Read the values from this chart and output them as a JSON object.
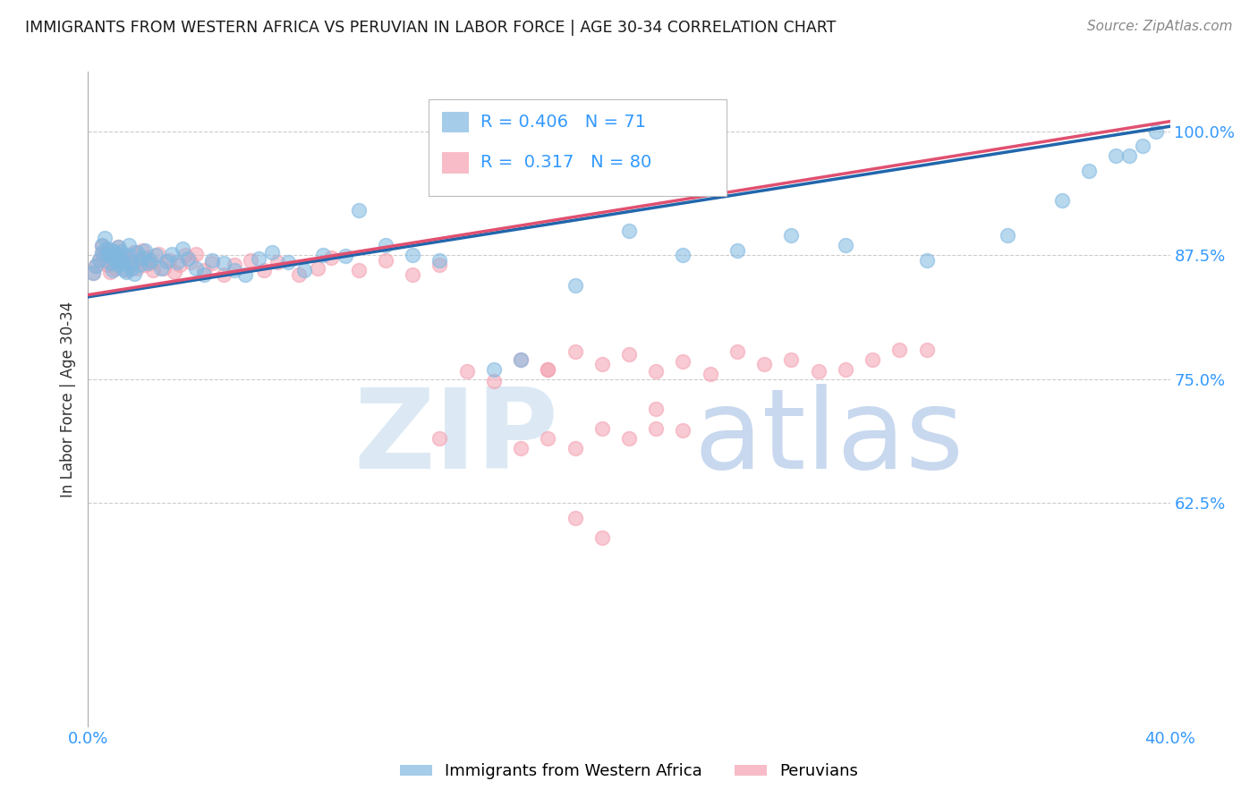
{
  "title": "IMMIGRANTS FROM WESTERN AFRICA VS PERUVIAN IN LABOR FORCE | AGE 30-34 CORRELATION CHART",
  "source": "Source: ZipAtlas.com",
  "ylabel": "In Labor Force | Age 30-34",
  "blue_R": 0.406,
  "blue_N": 71,
  "pink_R": 0.317,
  "pink_N": 80,
  "blue_color": "#7fb8e0",
  "pink_color": "#f4a0b0",
  "blue_line_color": "#2166ac",
  "pink_line_color": "#e05070",
  "axis_label_color": "#3399ff",
  "title_color": "#1a1a1a",
  "watermark_zip_color": "#dce9f5",
  "watermark_atlas_color": "#c8d8ee",
  "background_color": "#ffffff",
  "xmin": 0.0,
  "xmax": 0.4,
  "ymin": 0.4,
  "ymax": 1.06,
  "ytick_positions": [
    0.625,
    0.75,
    0.875,
    1.0
  ],
  "ytick_labels": [
    "62.5%",
    "75.0%",
    "87.5%",
    "100.0%"
  ],
  "xtick_positions": [
    0.0,
    0.1,
    0.2,
    0.3,
    0.4
  ],
  "xtick_labels": [
    "0.0%",
    "",
    "",
    "",
    "40.0%"
  ],
  "blue_line_x0": 0.0,
  "blue_line_y0": 0.833,
  "blue_line_x1": 0.4,
  "blue_line_y1": 1.005,
  "pink_line_x0": 0.0,
  "pink_line_y0": 0.835,
  "pink_line_x1": 0.4,
  "pink_line_y1": 1.01,
  "blue_scatter_x": [
    0.002,
    0.003,
    0.004,
    0.005,
    0.005,
    0.006,
    0.007,
    0.007,
    0.008,
    0.008,
    0.009,
    0.009,
    0.01,
    0.01,
    0.011,
    0.011,
    0.012,
    0.012,
    0.013,
    0.013,
    0.014,
    0.015,
    0.015,
    0.016,
    0.016,
    0.017,
    0.018,
    0.019,
    0.02,
    0.021,
    0.022,
    0.023,
    0.025,
    0.027,
    0.029,
    0.031,
    0.033,
    0.035,
    0.037,
    0.04,
    0.043,
    0.046,
    0.05,
    0.054,
    0.058,
    0.063,
    0.068,
    0.074,
    0.08,
    0.087,
    0.095,
    0.1,
    0.11,
    0.12,
    0.13,
    0.15,
    0.16,
    0.18,
    0.2,
    0.22,
    0.24,
    0.26,
    0.28,
    0.31,
    0.34,
    0.36,
    0.37,
    0.38,
    0.385,
    0.39,
    0.395
  ],
  "blue_scatter_y": [
    0.857,
    0.864,
    0.871,
    0.878,
    0.885,
    0.892,
    0.875,
    0.882,
    0.867,
    0.874,
    0.86,
    0.88,
    0.87,
    0.877,
    0.865,
    0.883,
    0.872,
    0.879,
    0.861,
    0.868,
    0.858,
    0.875,
    0.885,
    0.862,
    0.869,
    0.856,
    0.878,
    0.865,
    0.873,
    0.88,
    0.867,
    0.87,
    0.875,
    0.862,
    0.869,
    0.876,
    0.868,
    0.882,
    0.872,
    0.862,
    0.855,
    0.87,
    0.867,
    0.86,
    0.855,
    0.872,
    0.878,
    0.868,
    0.86,
    0.875,
    0.874,
    0.92,
    0.885,
    0.875,
    0.87,
    0.76,
    0.77,
    0.845,
    0.9,
    0.875,
    0.88,
    0.895,
    0.885,
    0.87,
    0.895,
    0.93,
    0.96,
    0.975,
    0.975,
    0.985,
    1.0
  ],
  "pink_scatter_x": [
    0.002,
    0.003,
    0.004,
    0.005,
    0.005,
    0.006,
    0.006,
    0.007,
    0.007,
    0.008,
    0.009,
    0.009,
    0.01,
    0.011,
    0.011,
    0.012,
    0.013,
    0.014,
    0.015,
    0.016,
    0.017,
    0.018,
    0.019,
    0.02,
    0.021,
    0.022,
    0.023,
    0.024,
    0.026,
    0.028,
    0.03,
    0.032,
    0.034,
    0.036,
    0.038,
    0.04,
    0.043,
    0.046,
    0.05,
    0.054,
    0.06,
    0.065,
    0.07,
    0.078,
    0.085,
    0.09,
    0.1,
    0.11,
    0.12,
    0.13,
    0.14,
    0.15,
    0.16,
    0.17,
    0.18,
    0.19,
    0.2,
    0.21,
    0.22,
    0.23,
    0.24,
    0.25,
    0.26,
    0.27,
    0.28,
    0.29,
    0.3,
    0.31,
    0.13,
    0.16,
    0.17,
    0.18,
    0.19,
    0.2,
    0.21,
    0.22,
    0.17,
    0.18,
    0.19,
    0.21
  ],
  "pink_scatter_y": [
    0.857,
    0.864,
    0.87,
    0.877,
    0.884,
    0.87,
    0.877,
    0.865,
    0.88,
    0.858,
    0.868,
    0.875,
    0.862,
    0.876,
    0.883,
    0.869,
    0.874,
    0.86,
    0.872,
    0.865,
    0.878,
    0.862,
    0.87,
    0.88,
    0.865,
    0.873,
    0.867,
    0.86,
    0.876,
    0.862,
    0.87,
    0.858,
    0.865,
    0.875,
    0.868,
    0.876,
    0.86,
    0.867,
    0.855,
    0.865,
    0.87,
    0.86,
    0.868,
    0.855,
    0.862,
    0.873,
    0.86,
    0.87,
    0.855,
    0.865,
    0.758,
    0.748,
    0.77,
    0.76,
    0.778,
    0.765,
    0.775,
    0.758,
    0.768,
    0.755,
    0.778,
    0.765,
    0.77,
    0.758,
    0.76,
    0.77,
    0.78,
    0.78,
    0.69,
    0.68,
    0.69,
    0.68,
    0.7,
    0.69,
    0.7,
    0.698,
    0.76,
    0.61,
    0.59,
    0.72
  ]
}
